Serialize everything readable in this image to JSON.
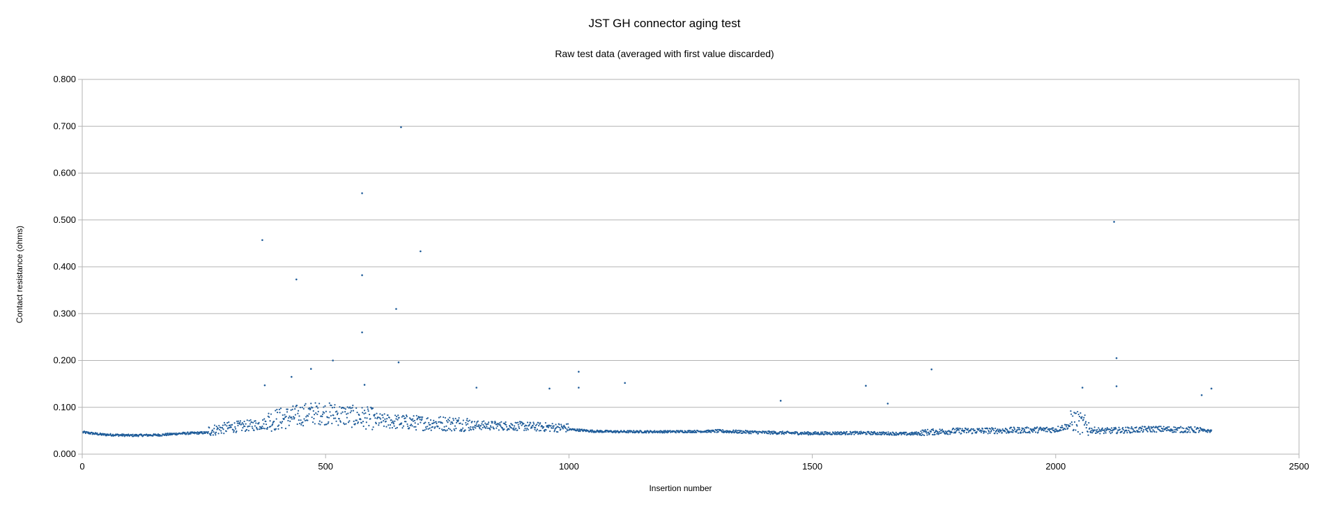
{
  "chart_data": {
    "type": "scatter",
    "title": "JST GH connector aging test",
    "subtitle": "Raw test data (averaged with first value discarded)",
    "xlabel": "Insertion number",
    "ylabel": "Contact resistance (ohms)",
    "xlim": [
      0,
      2500
    ],
    "ylim": [
      0,
      0.8
    ],
    "x_ticks": [
      "0",
      "500",
      "1000",
      "1500",
      "2000",
      "2500"
    ],
    "y_ticks": [
      "0.000",
      "0.100",
      "0.200",
      "0.300",
      "0.400",
      "0.500",
      "0.600",
      "0.700",
      "0.800"
    ],
    "grid": "horizontal",
    "legend": "none",
    "marker_color": "#1f5c99",
    "n_points": 2320,
    "baseline": [
      [
        0,
        0.046
      ],
      [
        40,
        0.041
      ],
      [
        100,
        0.039
      ],
      [
        160,
        0.04
      ],
      [
        200,
        0.043
      ],
      [
        260,
        0.045
      ],
      [
        300,
        0.052
      ],
      [
        360,
        0.058
      ],
      [
        420,
        0.068
      ],
      [
        470,
        0.078
      ],
      [
        520,
        0.076
      ],
      [
        560,
        0.07
      ],
      [
        620,
        0.064
      ],
      [
        700,
        0.06
      ],
      [
        800,
        0.058
      ],
      [
        900,
        0.056
      ],
      [
        1000,
        0.052
      ],
      [
        1050,
        0.048
      ],
      [
        1100,
        0.047
      ],
      [
        1200,
        0.047
      ],
      [
        1300,
        0.048
      ],
      [
        1400,
        0.045
      ],
      [
        1500,
        0.043
      ],
      [
        1600,
        0.044
      ],
      [
        1700,
        0.042
      ],
      [
        1750,
        0.045
      ],
      [
        1800,
        0.047
      ],
      [
        1900,
        0.048
      ],
      [
        2000,
        0.05
      ],
      [
        2040,
        0.062
      ],
      [
        2060,
        0.05
      ],
      [
        2100,
        0.047
      ],
      [
        2200,
        0.051
      ],
      [
        2300,
        0.049
      ],
      [
        2320,
        0.048
      ]
    ],
    "outliers": [
      [
        370,
        0.457
      ],
      [
        375,
        0.147
      ],
      [
        440,
        0.373
      ],
      [
        470,
        0.182
      ],
      [
        515,
        0.2
      ],
      [
        575,
        0.557
      ],
      [
        575,
        0.382
      ],
      [
        575,
        0.26
      ],
      [
        580,
        0.148
      ],
      [
        645,
        0.31
      ],
      [
        650,
        0.196
      ],
      [
        655,
        0.698
      ],
      [
        695,
        0.433
      ],
      [
        1020,
        0.176
      ],
      [
        1020,
        0.142
      ],
      [
        1115,
        0.152
      ],
      [
        1435,
        0.114
      ],
      [
        1610,
        0.146
      ],
      [
        1655,
        0.108
      ],
      [
        1745,
        0.181
      ],
      [
        2120,
        0.496
      ],
      [
        2125,
        0.205
      ],
      [
        2125,
        0.145
      ],
      [
        2055,
        0.142
      ],
      [
        2300,
        0.126
      ],
      [
        2320,
        0.14
      ],
      [
        960,
        0.14
      ],
      [
        810,
        0.142
      ],
      [
        430,
        0.165
      ]
    ]
  }
}
